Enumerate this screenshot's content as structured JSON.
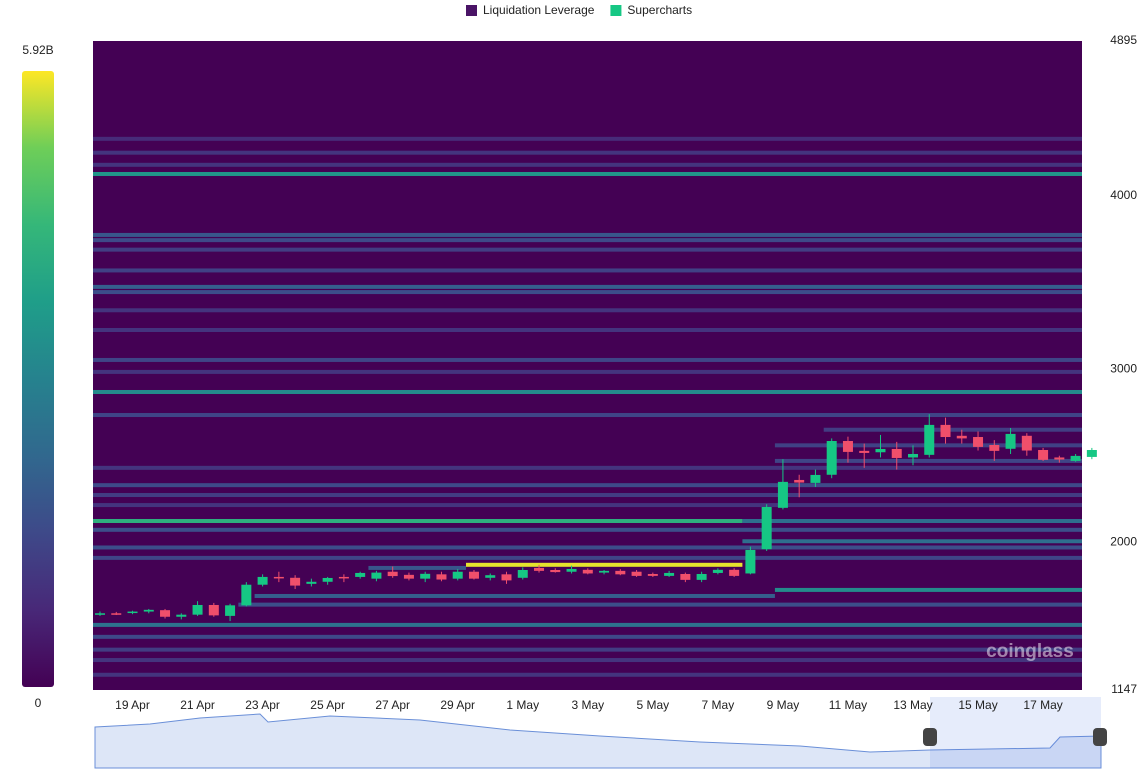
{
  "chart_data": {
    "type": "candlestick",
    "ylim": [
      1147,
      4895
    ],
    "yticks": [
      1147,
      2000,
      3000,
      4000,
      4895
    ],
    "xticks": [
      "19 Apr",
      "21 Apr",
      "23 Apr",
      "25 Apr",
      "27 Apr",
      "29 Apr",
      "1 May",
      "3 May",
      "5 May",
      "7 May",
      "9 May",
      "11 May",
      "13 May",
      "15 May",
      "17 May"
    ],
    "watermark": "coinglass",
    "colorbar": {
      "lim": [
        0,
        5.92
      ],
      "ticks": [
        {
          "value": 5.92,
          "label": "5.92B"
        },
        0
      ]
    },
    "series": [
      {
        "name": "Liquidation Leverage",
        "color": "#4a1466",
        "type": "heatmap",
        "levels": [
          {
            "price": 4330,
            "value": 0.8
          },
          {
            "price": 4250,
            "value": 1.0
          },
          {
            "price": 4180,
            "value": 1.0
          },
          {
            "price": 4127,
            "value": 3.5
          },
          {
            "price": 3775,
            "value": 1.8
          },
          {
            "price": 3745,
            "value": 1.5
          },
          {
            "price": 3690,
            "value": 1.2
          },
          {
            "price": 3570,
            "value": 1.3
          },
          {
            "price": 3475,
            "value": 2.0
          },
          {
            "price": 3445,
            "value": 1.6
          },
          {
            "price": 3340,
            "value": 1.0
          },
          {
            "price": 3226,
            "value": 1.0
          },
          {
            "price": 3053,
            "value": 1.4
          },
          {
            "price": 2984,
            "value": 1.0
          },
          {
            "price": 2868,
            "value": 3.2
          },
          {
            "price": 2735,
            "value": 1.4
          },
          {
            "price": 2650,
            "value": 1.2,
            "start": 45
          },
          {
            "price": 2560,
            "value": 1.3,
            "start": 42
          },
          {
            "price": 2470,
            "value": 1.4,
            "start": 42
          },
          {
            "price": 2430,
            "value": 1.0
          },
          {
            "price": 2330,
            "value": 1.5
          },
          {
            "price": 2273,
            "value": 1.2
          },
          {
            "price": 2215,
            "value": 1.0
          },
          {
            "price": 2123,
            "value": 4.2,
            "end": 40
          },
          {
            "price": 2123,
            "value": 2.4,
            "start": 40
          },
          {
            "price": 2072,
            "value": 1.6
          },
          {
            "price": 2006,
            "value": 2.4,
            "start": 40
          },
          {
            "price": 1970,
            "value": 1.6
          },
          {
            "price": 1910,
            "value": 1.4
          },
          {
            "price": 1870,
            "value": 5.8,
            "start": 23,
            "end": 40
          },
          {
            "price": 1852,
            "value": 1.8,
            "start": 17,
            "end": 23
          },
          {
            "price": 1725,
            "value": 3.2,
            "start": 42
          },
          {
            "price": 1690,
            "value": 2.0,
            "start": 10,
            "end": 42
          },
          {
            "price": 1640,
            "value": 1.6,
            "start": 9
          },
          {
            "price": 1523,
            "value": 2.5
          },
          {
            "price": 1454,
            "value": 1.5
          },
          {
            "price": 1380,
            "value": 1.2
          },
          {
            "price": 1320,
            "value": 1.0
          },
          {
            "price": 1235,
            "value": 1.0
          }
        ]
      },
      {
        "name": "Supercharts",
        "color": "#16c784",
        "down_color": "#f04f6b",
        "open": [
          1585,
          1590,
          1592,
          1600,
          1608,
          1570,
          1582,
          1638,
          1575,
          1636,
          1755,
          1800,
          1795,
          1760,
          1772,
          1800,
          1800,
          1790,
          1830,
          1812,
          1790,
          1815,
          1790,
          1830,
          1795,
          1815,
          1795,
          1852,
          1840,
          1830,
          1841,
          1825,
          1835,
          1830,
          1817,
          1806,
          1817,
          1783,
          1823,
          1841,
          1820,
          1960,
          2199,
          2360,
          2343,
          2390,
          2585,
          2528,
          2520,
          2539,
          2490,
          2505,
          2678,
          2615,
          2608,
          2562,
          2540,
          2615,
          2533,
          2490,
          2470,
          2493
        ],
        "high": [
          1600,
          1598,
          1605,
          1615,
          1615,
          1590,
          1660,
          1650,
          1645,
          1770,
          1815,
          1830,
          1810,
          1790,
          1800,
          1815,
          1830,
          1835,
          1860,
          1825,
          1830,
          1830,
          1845,
          1840,
          1820,
          1830,
          1855,
          1870,
          1850,
          1865,
          1850,
          1840,
          1845,
          1840,
          1825,
          1835,
          1825,
          1830,
          1850,
          1850,
          1975,
          2220,
          2480,
          2390,
          2420,
          2600,
          2610,
          2570,
          2620,
          2580,
          2560,
          2740,
          2720,
          2650,
          2640,
          2590,
          2660,
          2630,
          2545,
          2500,
          2510,
          2545
        ],
        "low": [
          1575,
          1580,
          1585,
          1590,
          1560,
          1555,
          1575,
          1570,
          1545,
          1630,
          1745,
          1770,
          1730,
          1745,
          1755,
          1770,
          1790,
          1775,
          1795,
          1780,
          1770,
          1775,
          1780,
          1785,
          1780,
          1760,
          1785,
          1825,
          1825,
          1820,
          1815,
          1815,
          1810,
          1800,
          1800,
          1800,
          1770,
          1770,
          1815,
          1800,
          1815,
          1950,
          2190,
          2260,
          2320,
          2370,
          2460,
          2430,
          2490,
          2420,
          2445,
          2490,
          2570,
          2570,
          2530,
          2470,
          2510,
          2500,
          2470,
          2460,
          2465,
          2480
        ],
        "close": [
          1590,
          1588,
          1600,
          1610,
          1570,
          1582,
          1638,
          1578,
          1636,
          1755,
          1800,
          1795,
          1750,
          1772,
          1794,
          1795,
          1823,
          1825,
          1805,
          1790,
          1818,
          1785,
          1830,
          1790,
          1810,
          1780,
          1840,
          1835,
          1828,
          1846,
          1820,
          1835,
          1815,
          1806,
          1806,
          1823,
          1783,
          1817,
          1841,
          1806,
          1956,
          2204,
          2349,
          2345,
          2389,
          2585,
          2522,
          2516,
          2539,
          2487,
          2510,
          2678,
          2608,
          2600,
          2551,
          2528,
          2626,
          2530,
          2476,
          2478,
          2499,
          2533
        ]
      }
    ]
  }
}
